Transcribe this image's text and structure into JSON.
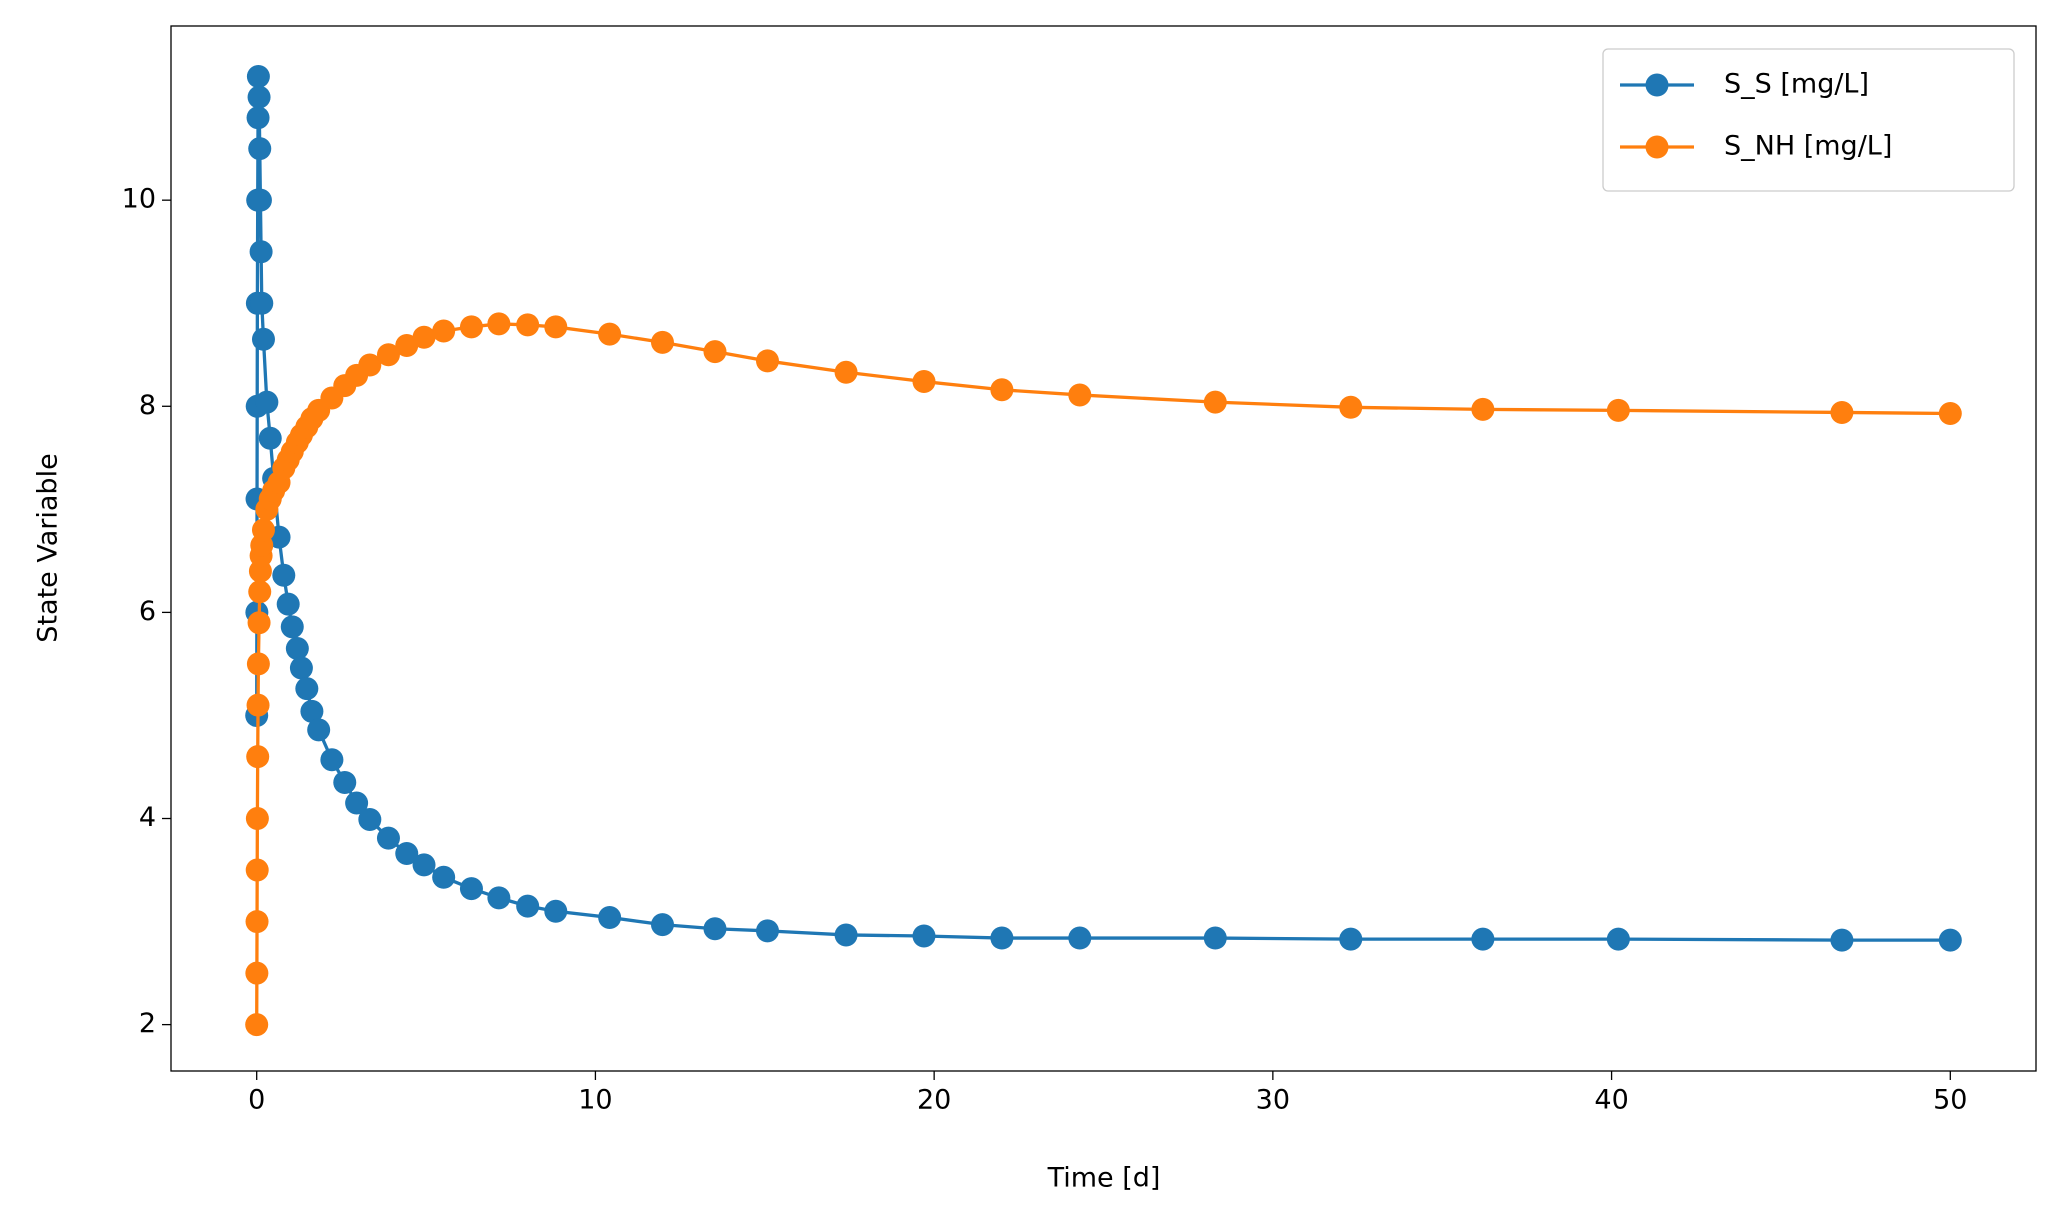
{
  "chart_data": {
    "type": "line",
    "xlabel": "Time [d]",
    "ylabel": "State Variable",
    "x": [
      0,
      0.005,
      0.01,
      0.015,
      0.02,
      0.03,
      0.04,
      0.05,
      0.07,
      0.09,
      0.11,
      0.13,
      0.15,
      0.2,
      0.3,
      0.4,
      0.5,
      0.66,
      0.8,
      0.93,
      1.05,
      1.2,
      1.32,
      1.48,
      1.63,
      1.83,
      2.22,
      2.6,
      2.95,
      3.34,
      3.89,
      4.43,
      4.94,
      5.52,
      6.34,
      7.15,
      8.0,
      8.83,
      10.42,
      11.98,
      13.53,
      15.08,
      17.4,
      19.7,
      22.0,
      24.3,
      28.3,
      32.3,
      36.2,
      40.2,
      46.8,
      50
    ],
    "series": [
      {
        "name": "S_S [mg/L]",
        "color": "#1f77b4",
        "values": [
          5.0,
          6.0,
          7.1,
          8.0,
          9.0,
          10.0,
          10.8,
          11.2,
          11.0,
          10.5,
          10.0,
          9.5,
          9.0,
          8.65,
          8.04,
          7.69,
          7.3,
          6.73,
          6.36,
          6.08,
          5.86,
          5.65,
          5.46,
          5.26,
          5.04,
          4.86,
          4.57,
          4.35,
          4.15,
          3.99,
          3.81,
          3.66,
          3.55,
          3.43,
          3.32,
          3.23,
          3.15,
          3.1,
          3.04,
          2.97,
          2.93,
          2.91,
          2.87,
          2.86,
          2.84,
          2.84,
          2.84,
          2.83,
          2.83,
          2.83,
          2.82,
          2.82
        ]
      },
      {
        "name": "S_NH [mg/L]",
        "color": "#ff7f0e",
        "values": [
          2.0,
          2.5,
          3.0,
          3.5,
          4.0,
          4.6,
          5.1,
          5.5,
          5.9,
          6.2,
          6.4,
          6.55,
          6.65,
          6.8,
          7.0,
          7.1,
          7.18,
          7.26,
          7.4,
          7.48,
          7.56,
          7.65,
          7.72,
          7.8,
          7.88,
          7.96,
          8.08,
          8.2,
          8.3,
          8.4,
          8.5,
          8.59,
          8.67,
          8.73,
          8.77,
          8.8,
          8.79,
          8.77,
          8.7,
          8.62,
          8.53,
          8.44,
          8.33,
          8.24,
          8.16,
          8.11,
          8.04,
          7.99,
          7.97,
          7.96,
          7.94,
          7.93
        ]
      }
    ],
    "xlim": [
      -2.53,
      52.53
    ],
    "xticks": [
      0,
      10,
      20,
      30,
      40,
      50
    ],
    "ylim": [
      1.55,
      11.69
    ],
    "yticks": [
      2,
      4,
      6,
      8,
      10
    ],
    "grid": false,
    "legend": "upper right",
    "markers": true
  }
}
